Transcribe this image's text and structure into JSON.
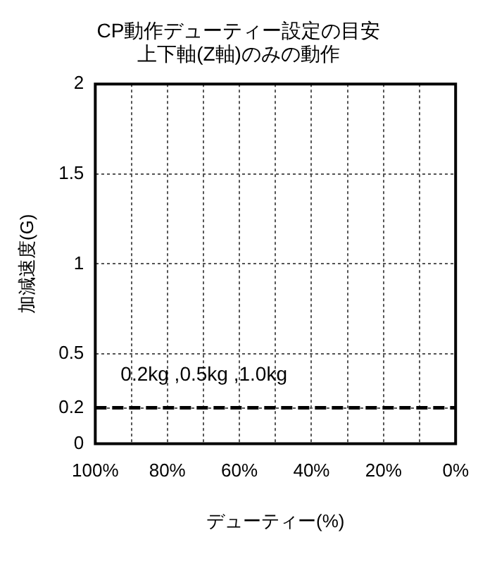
{
  "chart_data": {
    "type": "line",
    "title": [
      "CP動作デューティー設定の目安",
      "上下軸(Z軸)のみの動作"
    ],
    "xlabel": "デューティー(%)",
    "ylabel": "加減速度(G)",
    "x": [
      100,
      0
    ],
    "series": [
      {
        "name": "0.2kg ,0.5kg ,1.0kg",
        "color": "#000000",
        "values": [
          0.2,
          0.2
        ]
      }
    ],
    "xlim": [
      100,
      0
    ],
    "xticks": [
      {
        "value": 100,
        "label": "100%"
      },
      {
        "value": 90,
        "label": null
      },
      {
        "value": 80,
        "label": "80%"
      },
      {
        "value": 70,
        "label": null
      },
      {
        "value": 60,
        "label": "60%"
      },
      {
        "value": 50,
        "label": null
      },
      {
        "value": 40,
        "label": "40%"
      },
      {
        "value": 30,
        "label": null
      },
      {
        "value": 20,
        "label": "20%"
      },
      {
        "value": 10,
        "label": null
      },
      {
        "value": 0,
        "label": "0%"
      }
    ],
    "ylim": [
      0,
      2
    ],
    "yticks": [
      0,
      0.2,
      0.5,
      1,
      1.5,
      2
    ],
    "grid": true,
    "line_style": "dashed",
    "marker": "none",
    "legend": false
  }
}
